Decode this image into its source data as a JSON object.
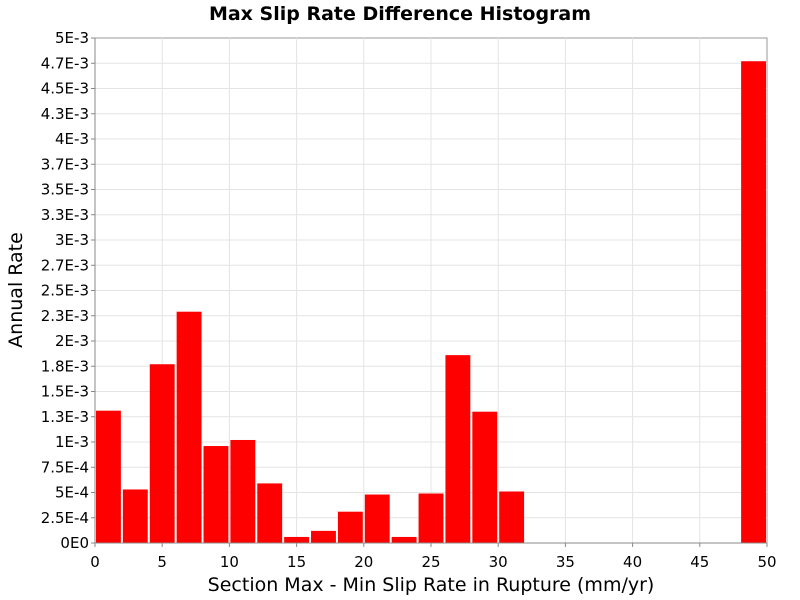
{
  "chart_data": {
    "type": "bar",
    "title": "Max Slip Rate Difference Histogram",
    "xlabel": "Section Max - Min Slip Rate in Rupture (mm/yr)",
    "ylabel": "Annual Rate",
    "xlim": [
      0,
      50
    ],
    "ylim": [
      0,
      0.005
    ],
    "bin_width": 2,
    "grid": true,
    "legend": "none",
    "bar_color": "#ff0000",
    "x_ticks": [
      {
        "value": 0,
        "label": "0"
      },
      {
        "value": 5,
        "label": "5"
      },
      {
        "value": 10,
        "label": "10"
      },
      {
        "value": 15,
        "label": "15"
      },
      {
        "value": 20,
        "label": "20"
      },
      {
        "value": 25,
        "label": "25"
      },
      {
        "value": 30,
        "label": "30"
      },
      {
        "value": 35,
        "label": "35"
      },
      {
        "value": 40,
        "label": "40"
      },
      {
        "value": 45,
        "label": "45"
      },
      {
        "value": 50,
        "label": "50"
      }
    ],
    "y_ticks": [
      {
        "value": 0,
        "label": "0E0"
      },
      {
        "value": 0.00025,
        "label": "2.5E-4"
      },
      {
        "value": 0.0005,
        "label": "5E-4"
      },
      {
        "value": 0.00075,
        "label": "7.5E-4"
      },
      {
        "value": 0.001,
        "label": "1E-3"
      },
      {
        "value": 0.00125,
        "label": "1.3E-3"
      },
      {
        "value": 0.0015,
        "label": "1.5E-3"
      },
      {
        "value": 0.00175,
        "label": "1.8E-3"
      },
      {
        "value": 0.002,
        "label": "2E-3"
      },
      {
        "value": 0.00225,
        "label": "2.3E-3"
      },
      {
        "value": 0.0025,
        "label": "2.5E-3"
      },
      {
        "value": 0.00275,
        "label": "2.7E-3"
      },
      {
        "value": 0.003,
        "label": "3E-3"
      },
      {
        "value": 0.00325,
        "label": "3.3E-3"
      },
      {
        "value": 0.0035,
        "label": "3.5E-3"
      },
      {
        "value": 0.00375,
        "label": "3.7E-3"
      },
      {
        "value": 0.004,
        "label": "4E-3"
      },
      {
        "value": 0.00425,
        "label": "4.3E-3"
      },
      {
        "value": 0.0045,
        "label": "4.5E-3"
      },
      {
        "value": 0.00475,
        "label": "4.7E-3"
      },
      {
        "value": 0.005,
        "label": "5E-3"
      }
    ],
    "bars": [
      {
        "x": 1,
        "value": 0.00131
      },
      {
        "x": 3,
        "value": 0.00053
      },
      {
        "x": 5,
        "value": 0.00177
      },
      {
        "x": 7,
        "value": 0.00229
      },
      {
        "x": 9,
        "value": 0.00096
      },
      {
        "x": 11,
        "value": 0.00102
      },
      {
        "x": 13,
        "value": 0.00059
      },
      {
        "x": 15,
        "value": 6e-05
      },
      {
        "x": 17,
        "value": 0.00012
      },
      {
        "x": 19,
        "value": 0.00031
      },
      {
        "x": 21,
        "value": 0.00048
      },
      {
        "x": 23,
        "value": 6e-05
      },
      {
        "x": 25,
        "value": 0.00049
      },
      {
        "x": 27,
        "value": 0.00186
      },
      {
        "x": 29,
        "value": 0.0013
      },
      {
        "x": 31,
        "value": 0.00051
      },
      {
        "x": 49,
        "value": 0.00477
      }
    ]
  }
}
